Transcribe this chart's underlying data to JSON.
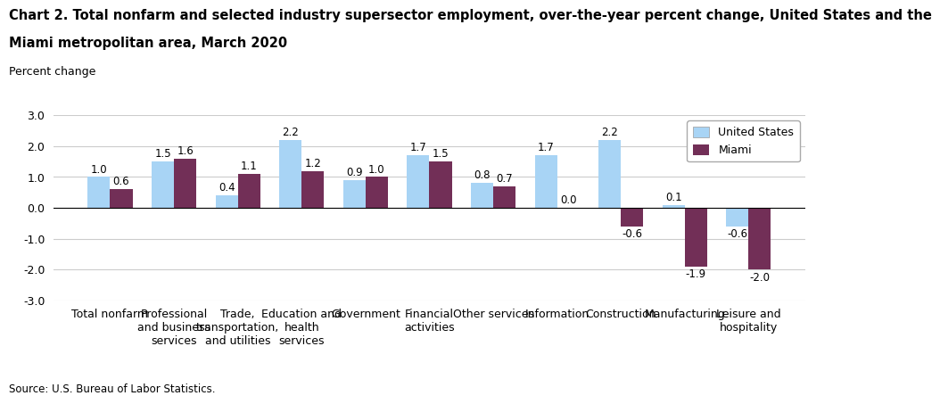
{
  "title_line1": "Chart 2. Total nonfarm and selected industry supersector employment, over-the-year percent change, United States and the",
  "title_line2": "Miami metropolitan area, March 2020",
  "ylabel_text": "Percent change",
  "source": "Source: U.S. Bureau of Labor Statistics.",
  "categories": [
    "Total nonfarm",
    "Professional\nand business\nservices",
    "Trade,\ntransportation,\nand utilities",
    "Education and\nhealth\nservices",
    "Government",
    "Financial\nactivities",
    "Other services",
    "Information",
    "Construction",
    "Manufacturing",
    "Leisure and\nhospitality"
  ],
  "us_values": [
    1.0,
    1.5,
    0.4,
    2.2,
    0.9,
    1.7,
    0.8,
    1.7,
    2.2,
    0.1,
    -0.6
  ],
  "miami_values": [
    0.6,
    1.6,
    1.1,
    1.2,
    1.0,
    1.5,
    0.7,
    0.0,
    -0.6,
    -1.9,
    -2.0
  ],
  "us_color": "#a8d4f5",
  "miami_color": "#722f57",
  "ylim": [
    -3.0,
    3.0
  ],
  "yticks": [
    -3.0,
    -2.0,
    -1.0,
    0.0,
    1.0,
    2.0,
    3.0
  ],
  "ytick_labels": [
    "-3.0",
    "-2.0",
    "-1.0",
    "0.0",
    "1.0",
    "2.0",
    "3.0"
  ],
  "legend_us": "United States",
  "legend_miami": "Miami",
  "bar_width": 0.35,
  "title_fontsize": 10.5,
  "label_fontsize": 9,
  "tick_fontsize": 9,
  "value_fontsize": 8.5
}
